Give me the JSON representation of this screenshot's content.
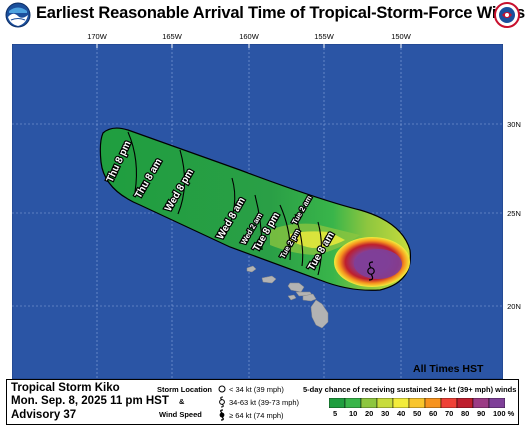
{
  "header": {
    "title": "Earliest Reasonable Arrival Time of Tropical-Storm-Force Winds",
    "noaa_logo": "noaa-logo",
    "nws_logo": "nws-logo"
  },
  "map": {
    "longitude_labels": [
      "170W",
      "165W",
      "160W",
      "155W",
      "150W"
    ],
    "latitude_labels": [
      "30N",
      "25N",
      "20N"
    ],
    "arrival_labels": [
      "Thu 8 pm",
      "Thu 8 am",
      "Wed 8 pm",
      "Wed 8 am",
      "Wed 2 am",
      "Tue 8 pm",
      "Tue 2 pm",
      "Tue 2 am",
      "Tue 8 am"
    ],
    "times_note": "All Times HST",
    "colors": {
      "ocean": "#2b55a5",
      "land": "#b3b3b3",
      "swath_green": "#2f9e44",
      "grid": "#ffffff"
    }
  },
  "footer": {
    "storm_name": "Tropical Storm Kiko",
    "date": "Mon. Sep. 8, 2025  11 pm HST",
    "advisory": "Advisory 37",
    "legend": {
      "storm_location": "Storm Location",
      "amp": "&",
      "wind_speed": "Wind Speed",
      "sym1": "< 34 kt (39 mph)",
      "sym2": "34-63 kt (39-73 mph)",
      "sym3": "≥ 64 kt (74 mph)"
    },
    "prob_title": "5-day chance of receiving sustained 34+ kt (39+ mph) winds",
    "scale": [
      {
        "label": "5",
        "color": "#1f9e3f"
      },
      {
        "label": "10",
        "color": "#39b54a"
      },
      {
        "label": "20",
        "color": "#8dc63f"
      },
      {
        "label": "30",
        "color": "#c8dc3c"
      },
      {
        "label": "40",
        "color": "#f3ec3b"
      },
      {
        "label": "50",
        "color": "#f9c52c"
      },
      {
        "label": "60",
        "color": "#f6921e"
      },
      {
        "label": "70",
        "color": "#ef4136"
      },
      {
        "label": "80",
        "color": "#be1e2d"
      },
      {
        "label": "90",
        "color": "#9b3b85"
      },
      {
        "label": "100 %",
        "color": "#7e3f98"
      }
    ]
  }
}
